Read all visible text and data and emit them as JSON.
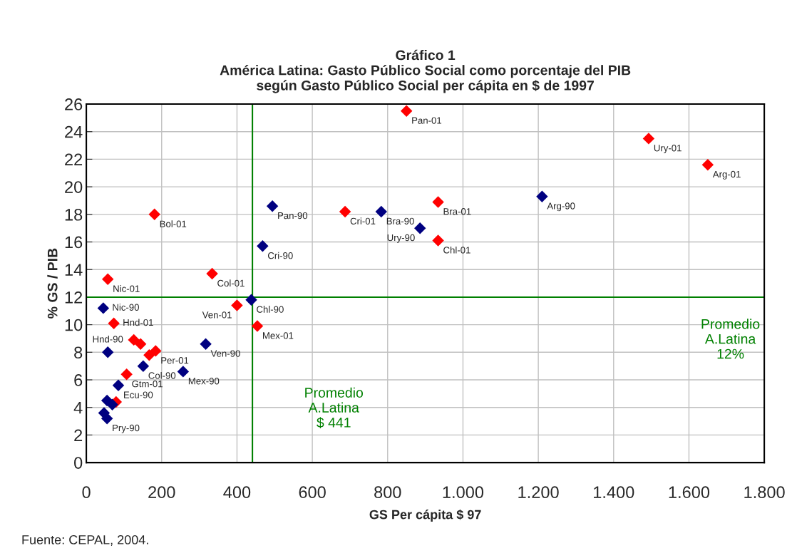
{
  "chart_data": {
    "type": "scatter",
    "title": "Gráfico 1\nAmérica Latina: Gasto Público Social como porcentaje del PIB\nsegún Gasto Público Social per cápita en $ de 1997",
    "xlabel": "GS Per cápita $ 97",
    "ylabel": "% GS / PIB",
    "series": [
      {
        "color": "#ff0000",
        "x": [
          850,
          1493,
          1650,
          934,
          934,
          687,
          181,
          334,
          57,
          400,
          454,
          73,
          126,
          144,
          184,
          167,
          107,
          79
        ],
        "values": [
          25.5,
          23.5,
          21.6,
          18.9,
          16.1,
          18.2,
          18.0,
          13.7,
          13.3,
          11.4,
          9.9,
          10.1,
          8.9,
          8.6,
          8.1,
          7.8,
          6.4,
          4.4
        ]
      },
      {
        "color": "#000080",
        "x": [
          1210,
          886,
          783,
          494,
          468,
          45,
          438,
          57,
          317,
          151,
          257,
          85,
          55,
          69,
          47,
          55
        ],
        "values": [
          19.3,
          17.0,
          18.2,
          18.6,
          15.7,
          11.2,
          11.8,
          8.0,
          8.6,
          7.0,
          6.6,
          5.6,
          4.5,
          4.2,
          3.6,
          3.2
        ]
      }
    ],
    "annotations": [
      {
        "text": "Pan-01",
        "x": 850,
        "y": 25.5
      },
      {
        "text": "Ury-01",
        "x": 1493,
        "y": 23.5
      },
      {
        "text": "Arg-01",
        "x": 1650,
        "y": 21.6
      },
      {
        "text": "Bra-01",
        "x": 934,
        "y": 18.9
      },
      {
        "text": "Chl-01",
        "x": 934,
        "y": 16.1
      },
      {
        "text": "Cri-01",
        "x": 687,
        "y": 18.2
      },
      {
        "text": "Bol-01",
        "x": 181,
        "y": 18.0
      },
      {
        "text": "Col-01",
        "x": 334,
        "y": 13.7
      },
      {
        "text": "Nic-01",
        "x": 57,
        "y": 13.3
      },
      {
        "text": "Ven-01",
        "x": 400,
        "y": 11.4
      },
      {
        "text": "Mex-01",
        "x": 454,
        "y": 9.9
      },
      {
        "text": "Hnd-01",
        "x": 73,
        "y": 10.1
      },
      {
        "text": "Per-01",
        "x": 184,
        "y": 8.1
      },
      {
        "text": "Gtm-01",
        "x": 107,
        "y": 6.4
      },
      {
        "text": "Arg-90",
        "x": 1210,
        "y": 19.3
      },
      {
        "text": "Ury-90",
        "x": 886,
        "y": 17.0
      },
      {
        "text": "Bra-90",
        "x": 783,
        "y": 18.2
      },
      {
        "text": "Pan-90",
        "x": 494,
        "y": 18.6
      },
      {
        "text": "Cri-90",
        "x": 468,
        "y": 15.7
      },
      {
        "text": "Nic-90",
        "x": 45,
        "y": 11.2
      },
      {
        "text": "Chl-90",
        "x": 438,
        "y": 11.8
      },
      {
        "text": "Hnd-90",
        "x": 57,
        "y": 8.0
      },
      {
        "text": "Ven-90",
        "x": 317,
        "y": 8.6
      },
      {
        "text": "Col-90",
        "x": 151,
        "y": 7.0
      },
      {
        "text": "Mex-90",
        "x": 257,
        "y": 6.6
      },
      {
        "text": "Ecu-90",
        "x": 85,
        "y": 5.6
      },
      {
        "text": "Pry-90",
        "x": 55,
        "y": 3.2
      },
      "Fuente: CEPAL, 2004."
    ],
    "ref_lines": [
      {
        "axis": "x",
        "value": 441,
        "label": "Promedio\nA.Latina\n$ 441",
        "color": "#008000"
      },
      {
        "axis": "y",
        "value": 12,
        "label": "Promedio\nA.Latina\n12%",
        "color": "#008000"
      }
    ],
    "xlim": [
      0,
      1800
    ],
    "xticks": [
      0,
      200,
      400,
      600,
      800,
      {
        "value": 1000,
        "label": "1.000"
      },
      {
        "value": 1200,
        "label": "1.200"
      },
      {
        "value": 1400,
        "label": "1.400"
      },
      {
        "value": 1600,
        "label": "1.600"
      },
      {
        "value": 1800,
        "label": "1.800"
      }
    ],
    "ylim": [
      0,
      26
    ],
    "yticks": [
      0,
      2,
      4,
      6,
      8,
      10,
      12,
      14,
      16,
      18,
      20,
      22,
      24,
      26
    ],
    "grid": true,
    "marker": "diamond"
  }
}
